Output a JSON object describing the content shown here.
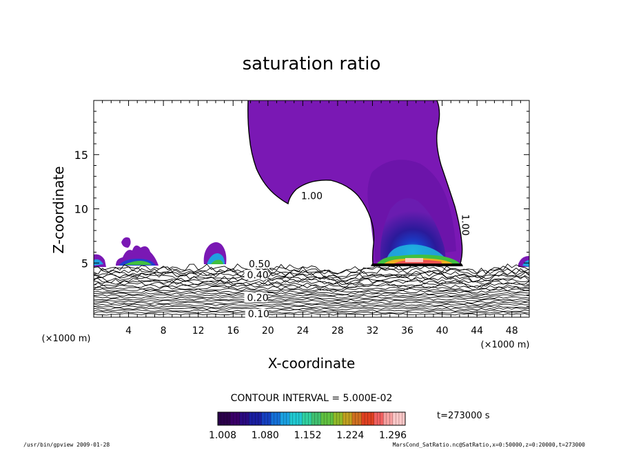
{
  "chart_data": {
    "type": "contour",
    "title": "saturation ratio",
    "xlabel": "X-coordinate",
    "ylabel": "Z-coordinate",
    "x_unit_label": "(×1000 m)",
    "y_unit_label": "(×1000 m)",
    "xlim": [
      0,
      50
    ],
    "ylim": [
      0,
      20
    ],
    "x_ticks": [
      4,
      8,
      12,
      16,
      20,
      24,
      28,
      32,
      36,
      40,
      44,
      48
    ],
    "y_ticks": [
      5,
      10,
      15
    ],
    "contour_interval_text": "CONTOUR INTERVAL = 5.000E-02",
    "contour_labels": [
      {
        "text": "1.00",
        "x": 23.8,
        "z": 10.9
      },
      {
        "text": "1.00",
        "x": 42.3,
        "z": 9.5
      },
      {
        "text": "0.50",
        "x": 17.8,
        "z": 4.6
      },
      {
        "text": "0.40",
        "x": 17.6,
        "z": 3.6
      },
      {
        "text": "0.20",
        "x": 17.6,
        "z": 1.5
      },
      {
        "text": "0.10",
        "x": 17.7,
        "z": 0.0
      }
    ],
    "colorbar": {
      "tick_labels": [
        "1.008",
        "1.080",
        "1.152",
        "1.224",
        "1.296"
      ],
      "colors": [
        "#2a004a",
        "#3a0068",
        "#2a0a80",
        "#1a1ea0",
        "#1440c0",
        "#1470d8",
        "#1aa0e0",
        "#20c8d0",
        "#30d0a0",
        "#40c070",
        "#60c040",
        "#90b828",
        "#c0a020",
        "#d07020",
        "#e04020",
        "#f06060",
        "#f8a0a0",
        "#ffc8c8"
      ]
    },
    "time_text": "t=273000 s"
  },
  "footer": {
    "left": "/usr/bin/gpview  2009-01-28",
    "right": "MarsCond_SatRatio.nc@SatRatio,x=0:50000,z=0:20000,t=273000"
  }
}
